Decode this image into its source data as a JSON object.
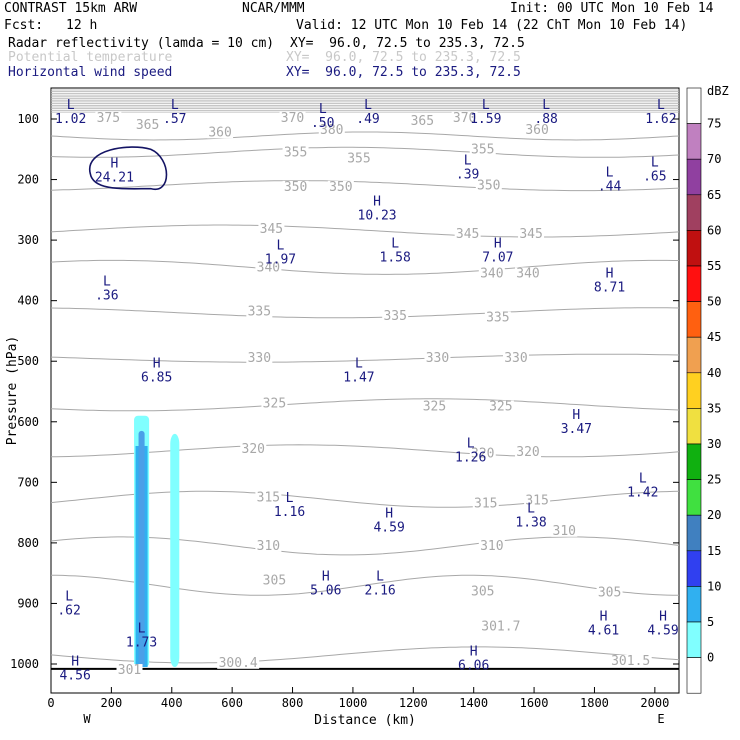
{
  "header": {
    "model": "CONTRAST 15km ARW",
    "org": "NCAR/MMM",
    "init": "Init: 00 UTC Mon 10 Feb 14",
    "fcst_label": "Fcst:",
    "fcst_value": "12 h",
    "valid": "Valid: 12 UTC Mon 10 Feb 14 (22 ChT Mon 10 Feb 14)",
    "fields": [
      {
        "name": "Radar reflectivity (lamda = 10 cm)",
        "xy": "XY=  96.0, 72.5 to 235.3, 72.5",
        "color": "#000000"
      },
      {
        "name": "Potential temperature",
        "xy": "XY=  96.0, 72.5 to 235.3, 72.5",
        "color": "#c8c8c8"
      },
      {
        "name": "Horizontal wind speed",
        "xy": "XY=  96.0, 72.5 to 235.3, 72.5",
        "color": "#1a1a80"
      }
    ]
  },
  "chart_data": {
    "type": "heatmap",
    "title": "Vertical cross section",
    "xlabel": "Distance (km)",
    "ylabel": "Pressure (hPa)",
    "xlim": [
      0,
      2080
    ],
    "x_ticks": [
      0,
      200,
      400,
      600,
      800,
      1000,
      1200,
      1400,
      1600,
      1800,
      2000
    ],
    "y_ticks": [
      100,
      200,
      300,
      400,
      500,
      600,
      700,
      800,
      900,
      1000
    ],
    "ylim_hpa": [
      1050,
      50
    ],
    "x_end_labels": [
      "W",
      "E"
    ],
    "colorbar": {
      "unit": "dBZ",
      "levels": [
        75,
        70,
        65,
        60,
        55,
        50,
        45,
        40,
        35,
        30,
        25,
        20,
        15,
        10,
        5,
        0
      ],
      "colors": [
        "#ffffff",
        "#c080c0",
        "#9040a0",
        "#a04060",
        "#c01010",
        "#ff1010",
        "#ff6010",
        "#f0a050",
        "#ffd020",
        "#f0e040",
        "#10b010",
        "#40e040",
        "#4080c0",
        "#3040f0",
        "#30b0f0",
        "#80ffff",
        "#ffffff"
      ]
    },
    "theta_labels": [
      {
        "x": 190,
        "p": 98,
        "t": "375"
      },
      {
        "x": 320,
        "p": 110,
        "t": "365"
      },
      {
        "x": 800,
        "p": 98,
        "t": "370"
      },
      {
        "x": 930,
        "p": 118,
        "t": "380"
      },
      {
        "x": 1230,
        "p": 103,
        "t": "365"
      },
      {
        "x": 1370,
        "p": 98,
        "t": "370"
      },
      {
        "x": 560,
        "p": 122,
        "t": "360"
      },
      {
        "x": 1610,
        "p": 118,
        "t": "360"
      },
      {
        "x": 810,
        "p": 155,
        "t": "355"
      },
      {
        "x": 1020,
        "p": 165,
        "t": "355"
      },
      {
        "x": 1430,
        "p": 150,
        "t": "355"
      },
      {
        "x": 810,
        "p": 212,
        "t": "350"
      },
      {
        "x": 960,
        "p": 212,
        "t": "350"
      },
      {
        "x": 1450,
        "p": 210,
        "t": "350"
      },
      {
        "x": 730,
        "p": 282,
        "t": "345"
      },
      {
        "x": 1380,
        "p": 290,
        "t": "345"
      },
      {
        "x": 1590,
        "p": 290,
        "t": "345"
      },
      {
        "x": 720,
        "p": 345,
        "t": "340"
      },
      {
        "x": 1460,
        "p": 355,
        "t": "340"
      },
      {
        "x": 1580,
        "p": 355,
        "t": "340"
      },
      {
        "x": 690,
        "p": 418,
        "t": "335"
      },
      {
        "x": 1140,
        "p": 425,
        "t": "335"
      },
      {
        "x": 1480,
        "p": 428,
        "t": "335"
      },
      {
        "x": 690,
        "p": 495,
        "t": "330"
      },
      {
        "x": 1280,
        "p": 495,
        "t": "330"
      },
      {
        "x": 1540,
        "p": 495,
        "t": "330"
      },
      {
        "x": 740,
        "p": 570,
        "t": "325"
      },
      {
        "x": 1270,
        "p": 575,
        "t": "325"
      },
      {
        "x": 1490,
        "p": 575,
        "t": "325"
      },
      {
        "x": 670,
        "p": 645,
        "t": "320"
      },
      {
        "x": 1430,
        "p": 652,
        "t": "320"
      },
      {
        "x": 1580,
        "p": 650,
        "t": "320"
      },
      {
        "x": 720,
        "p": 725,
        "t": "315"
      },
      {
        "x": 1440,
        "p": 735,
        "t": "315"
      },
      {
        "x": 1610,
        "p": 730,
        "t": "315"
      },
      {
        "x": 720,
        "p": 805,
        "t": "310"
      },
      {
        "x": 1460,
        "p": 805,
        "t": "310"
      },
      {
        "x": 1700,
        "p": 780,
        "t": "310"
      },
      {
        "x": 740,
        "p": 862,
        "t": "305"
      },
      {
        "x": 1430,
        "p": 880,
        "t": "305"
      },
      {
        "x": 1850,
        "p": 882,
        "t": "305"
      },
      {
        "x": 1490,
        "p": 938,
        "t": "301.7"
      },
      {
        "x": 620,
        "p": 998,
        "t": "300.4"
      },
      {
        "x": 1920,
        "p": 995,
        "t": "301.5"
      },
      {
        "x": 260,
        "p": 1010,
        "t": "301"
      }
    ],
    "wind_extrema": [
      {
        "x": 65,
        "p": 93,
        "mark": "L",
        "value": "1.02"
      },
      {
        "x": 410,
        "p": 93,
        "mark": "L",
        "value": ".57"
      },
      {
        "x": 900,
        "p": 100,
        "mark": "L",
        "value": ".50"
      },
      {
        "x": 1050,
        "p": 93,
        "mark": "L",
        "value": ".49"
      },
      {
        "x": 1440,
        "p": 93,
        "mark": "L",
        "value": "1.59"
      },
      {
        "x": 1640,
        "p": 93,
        "mark": "L",
        "value": ".88"
      },
      {
        "x": 2020,
        "p": 93,
        "mark": "L",
        "value": "1.62"
      },
      {
        "x": 210,
        "p": 190,
        "mark": "H",
        "value": "24.21"
      },
      {
        "x": 1380,
        "p": 185,
        "mark": "L",
        "value": ".39"
      },
      {
        "x": 1850,
        "p": 205,
        "mark": "L",
        "value": ".44"
      },
      {
        "x": 2000,
        "p": 188,
        "mark": "L",
        "value": ".65"
      },
      {
        "x": 1080,
        "p": 253,
        "mark": "H",
        "value": "10.23"
      },
      {
        "x": 760,
        "p": 325,
        "mark": "L",
        "value": "1.97"
      },
      {
        "x": 1140,
        "p": 322,
        "mark": "L",
        "value": "1.58"
      },
      {
        "x": 1480,
        "p": 322,
        "mark": "H",
        "value": "7.07"
      },
      {
        "x": 1850,
        "p": 372,
        "mark": "H",
        "value": "8.71"
      },
      {
        "x": 185,
        "p": 385,
        "mark": "L",
        "value": ".36"
      },
      {
        "x": 350,
        "p": 520,
        "mark": "H",
        "value": "6.85"
      },
      {
        "x": 1020,
        "p": 520,
        "mark": "L",
        "value": "1.47"
      },
      {
        "x": 1740,
        "p": 605,
        "mark": "H",
        "value": "3.47"
      },
      {
        "x": 1390,
        "p": 652,
        "mark": "L",
        "value": "1.26"
      },
      {
        "x": 1960,
        "p": 710,
        "mark": "L",
        "value": "1.42"
      },
      {
        "x": 790,
        "p": 742,
        "mark": "L",
        "value": "1.16"
      },
      {
        "x": 1590,
        "p": 760,
        "mark": "L",
        "value": "1.38"
      },
      {
        "x": 1120,
        "p": 768,
        "mark": "H",
        "value": "4.59"
      },
      {
        "x": 910,
        "p": 872,
        "mark": "H",
        "value": "5.06"
      },
      {
        "x": 1090,
        "p": 872,
        "mark": "L",
        "value": "2.16"
      },
      {
        "x": 60,
        "p": 905,
        "mark": "L",
        "value": ".62"
      },
      {
        "x": 1830,
        "p": 938,
        "mark": "H",
        "value": "4.61"
      },
      {
        "x": 2040,
        "p": 938,
        "mark": "H",
        "value": "4.59"
      },
      {
        "x": 300,
        "p": 958,
        "mark": "L",
        "value": "1.73"
      },
      {
        "x": 1400,
        "p": 996,
        "mark": "H",
        "value": "6.06"
      },
      {
        "x": 80,
        "p": 1012,
        "mark": "H",
        "value": "4.56"
      }
    ]
  }
}
